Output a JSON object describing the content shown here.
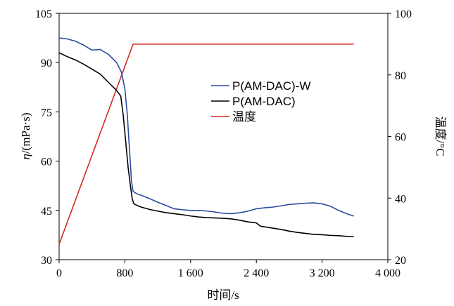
{
  "chart_data": {
    "type": "line",
    "title": "",
    "xlabel": "时间/s",
    "ylabel_left_italic": "η",
    "ylabel_left_rest": "/(mPa·s)",
    "ylabel_right": "温度/°C",
    "xlim": [
      0,
      4000
    ],
    "ylim_left": [
      30,
      105
    ],
    "ylim_right": [
      20,
      100
    ],
    "x_ticks": [
      0,
      800,
      1600,
      2400,
      3200,
      4000
    ],
    "x_tick_labels": [
      "0",
      "800",
      "1 600",
      "2 400",
      "3 200",
      "4 000"
    ],
    "y_left_ticks": [
      30,
      45,
      60,
      75,
      90,
      105
    ],
    "y_left_tick_labels": [
      "30",
      "45",
      "60",
      "75",
      "90",
      "105"
    ],
    "y_right_ticks": [
      20,
      40,
      60,
      80,
      100
    ],
    "y_right_tick_labels": [
      "20",
      "40",
      "60",
      "80",
      "100"
    ],
    "grid": false,
    "legend_position": "center-right",
    "series": [
      {
        "name": "P(AM-DAC)-W",
        "axis": "left",
        "color": "#2a4aa0",
        "points": [
          [
            0,
            97.5
          ],
          [
            100,
            97.2
          ],
          [
            200,
            96.5
          ],
          [
            300,
            95.3
          ],
          [
            400,
            93.8
          ],
          [
            500,
            94
          ],
          [
            600,
            92.5
          ],
          [
            700,
            90
          ],
          [
            760,
            87
          ],
          [
            800,
            82
          ],
          [
            830,
            74
          ],
          [
            860,
            62
          ],
          [
            880,
            54
          ],
          [
            900,
            50.8
          ],
          [
            950,
            50
          ],
          [
            1000,
            49.6
          ],
          [
            1100,
            48.6
          ],
          [
            1200,
            47.5
          ],
          [
            1300,
            46.5
          ],
          [
            1400,
            45.5
          ],
          [
            1500,
            45.2
          ],
          [
            1600,
            45
          ],
          [
            1700,
            45
          ],
          [
            1800,
            44.8
          ],
          [
            1900,
            44.5
          ],
          [
            2000,
            44.1
          ],
          [
            2100,
            44
          ],
          [
            2200,
            44.3
          ],
          [
            2300,
            44.8
          ],
          [
            2400,
            45.5
          ],
          [
            2500,
            45.8
          ],
          [
            2600,
            46
          ],
          [
            2700,
            46.4
          ],
          [
            2800,
            46.8
          ],
          [
            2900,
            47
          ],
          [
            3000,
            47.2
          ],
          [
            3100,
            47.3
          ],
          [
            3200,
            47
          ],
          [
            3300,
            46.3
          ],
          [
            3400,
            45
          ],
          [
            3500,
            44
          ],
          [
            3580,
            43.3
          ]
        ]
      },
      {
        "name": "P(AM-DAC)",
        "axis": "left",
        "color": "#000000",
        "points": [
          [
            0,
            93
          ],
          [
            100,
            91.8
          ],
          [
            200,
            90.8
          ],
          [
            300,
            89.5
          ],
          [
            400,
            88
          ],
          [
            500,
            86.5
          ],
          [
            600,
            84
          ],
          [
            700,
            81.5
          ],
          [
            750,
            79.8
          ],
          [
            780,
            74
          ],
          [
            810,
            66
          ],
          [
            840,
            58
          ],
          [
            870,
            52
          ],
          [
            890,
            48.5
          ],
          [
            910,
            47
          ],
          [
            950,
            46.5
          ],
          [
            1000,
            46
          ],
          [
            1100,
            45.3
          ],
          [
            1200,
            44.8
          ],
          [
            1300,
            44.3
          ],
          [
            1400,
            44
          ],
          [
            1500,
            43.7
          ],
          [
            1600,
            43.3
          ],
          [
            1700,
            43
          ],
          [
            1800,
            42.8
          ],
          [
            1900,
            42.7
          ],
          [
            2000,
            42.6
          ],
          [
            2100,
            42.4
          ],
          [
            2200,
            42
          ],
          [
            2300,
            41.5
          ],
          [
            2400,
            41.2
          ],
          [
            2450,
            40.2
          ],
          [
            2500,
            40
          ],
          [
            2600,
            39.6
          ],
          [
            2700,
            39.2
          ],
          [
            2800,
            38.7
          ],
          [
            2900,
            38.3
          ],
          [
            3000,
            38
          ],
          [
            3100,
            37.7
          ],
          [
            3200,
            37.6
          ],
          [
            3300,
            37.4
          ],
          [
            3400,
            37.3
          ],
          [
            3500,
            37.1
          ],
          [
            3580,
            37
          ]
        ]
      },
      {
        "name": "温度",
        "axis": "right",
        "color": "#d42a20",
        "points": [
          [
            0,
            25
          ],
          [
            900,
            90
          ],
          [
            3580,
            90
          ]
        ]
      }
    ]
  }
}
